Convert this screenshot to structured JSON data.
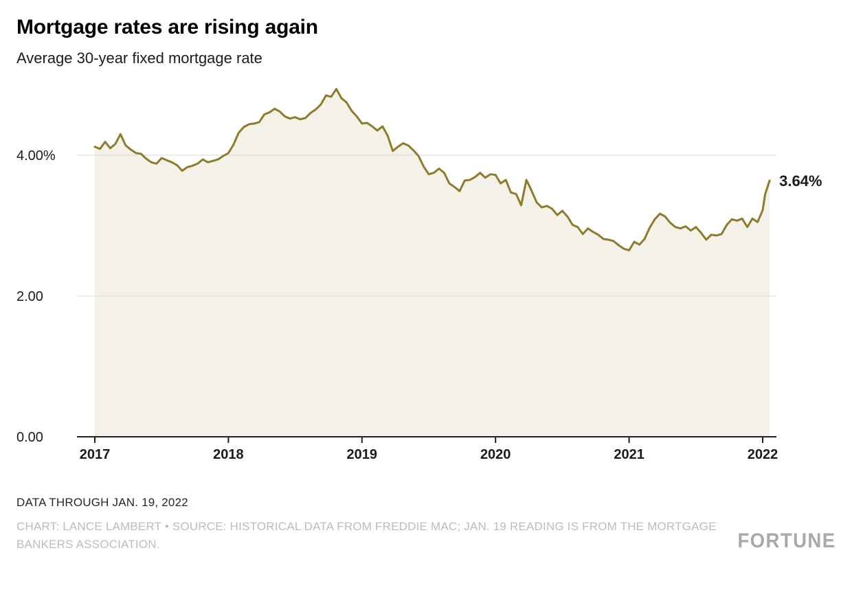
{
  "header": {
    "title": "Mortgage rates are rising again",
    "subtitle": "Average 30-year fixed mortgage rate"
  },
  "chart_data": {
    "type": "area",
    "title": "Mortgage rates are rising again",
    "subtitle": "Average 30-year fixed mortgage rate",
    "xlabel": "",
    "ylabel": "",
    "xlim": [
      2017,
      2022.1
    ],
    "ylim": [
      0,
      5.2
    ],
    "grid": "horizontal",
    "legend": "none",
    "line_color": "#8d7b2c",
    "fill_color": "#f4f1e9",
    "grid_color": "#d9d9d9",
    "axis_color": "#1f1f1f",
    "label_color": "#1a1a1a",
    "end_label": "3.64%",
    "y_ticks": [
      {
        "value": 4,
        "label": "4.00%"
      },
      {
        "value": 2,
        "label": "2.00"
      },
      {
        "value": 0,
        "label": "0.00"
      }
    ],
    "x_ticks": [
      {
        "value": 2017,
        "label": "2017"
      },
      {
        "value": 2018,
        "label": "2018"
      },
      {
        "value": 2019,
        "label": "2019"
      },
      {
        "value": 2020,
        "label": "2020"
      },
      {
        "value": 2021,
        "label": "2021"
      },
      {
        "value": 2022,
        "label": "2022"
      }
    ],
    "series": [
      {
        "name": "Average 30-year fixed mortgage rate (%)",
        "points": [
          [
            2017.0,
            4.12
          ],
          [
            2017.038,
            4.09
          ],
          [
            2017.077,
            4.19
          ],
          [
            2017.115,
            4.1
          ],
          [
            2017.154,
            4.16
          ],
          [
            2017.192,
            4.3
          ],
          [
            2017.231,
            4.14
          ],
          [
            2017.269,
            4.08
          ],
          [
            2017.308,
            4.03
          ],
          [
            2017.346,
            4.02
          ],
          [
            2017.385,
            3.95
          ],
          [
            2017.423,
            3.9
          ],
          [
            2017.462,
            3.88
          ],
          [
            2017.5,
            3.96
          ],
          [
            2017.538,
            3.93
          ],
          [
            2017.577,
            3.9
          ],
          [
            2017.615,
            3.86
          ],
          [
            2017.654,
            3.78
          ],
          [
            2017.692,
            3.83
          ],
          [
            2017.731,
            3.85
          ],
          [
            2017.769,
            3.88
          ],
          [
            2017.808,
            3.94
          ],
          [
            2017.846,
            3.9
          ],
          [
            2017.885,
            3.92
          ],
          [
            2017.923,
            3.94
          ],
          [
            2017.962,
            3.99
          ],
          [
            2018.0,
            4.03
          ],
          [
            2018.038,
            4.15
          ],
          [
            2018.077,
            4.32
          ],
          [
            2018.115,
            4.4
          ],
          [
            2018.154,
            4.44
          ],
          [
            2018.192,
            4.45
          ],
          [
            2018.231,
            4.47
          ],
          [
            2018.269,
            4.58
          ],
          [
            2018.308,
            4.61
          ],
          [
            2018.346,
            4.66
          ],
          [
            2018.385,
            4.62
          ],
          [
            2018.423,
            4.55
          ],
          [
            2018.462,
            4.52
          ],
          [
            2018.5,
            4.54
          ],
          [
            2018.538,
            4.51
          ],
          [
            2018.577,
            4.53
          ],
          [
            2018.615,
            4.6
          ],
          [
            2018.654,
            4.65
          ],
          [
            2018.692,
            4.72
          ],
          [
            2018.731,
            4.85
          ],
          [
            2018.769,
            4.83
          ],
          [
            2018.808,
            4.94
          ],
          [
            2018.846,
            4.81
          ],
          [
            2018.885,
            4.75
          ],
          [
            2018.923,
            4.63
          ],
          [
            2018.962,
            4.55
          ],
          [
            2019.0,
            4.45
          ],
          [
            2019.038,
            4.46
          ],
          [
            2019.077,
            4.41
          ],
          [
            2019.115,
            4.35
          ],
          [
            2019.154,
            4.41
          ],
          [
            2019.192,
            4.28
          ],
          [
            2019.231,
            4.06
          ],
          [
            2019.269,
            4.12
          ],
          [
            2019.308,
            4.17
          ],
          [
            2019.346,
            4.14
          ],
          [
            2019.385,
            4.07
          ],
          [
            2019.423,
            3.99
          ],
          [
            2019.462,
            3.84
          ],
          [
            2019.5,
            3.73
          ],
          [
            2019.538,
            3.75
          ],
          [
            2019.577,
            3.81
          ],
          [
            2019.615,
            3.75
          ],
          [
            2019.654,
            3.6
          ],
          [
            2019.692,
            3.55
          ],
          [
            2019.731,
            3.49
          ],
          [
            2019.769,
            3.64
          ],
          [
            2019.808,
            3.65
          ],
          [
            2019.846,
            3.69
          ],
          [
            2019.885,
            3.75
          ],
          [
            2019.923,
            3.68
          ],
          [
            2019.962,
            3.73
          ],
          [
            2020.0,
            3.72
          ],
          [
            2020.038,
            3.6
          ],
          [
            2020.077,
            3.65
          ],
          [
            2020.115,
            3.47
          ],
          [
            2020.154,
            3.45
          ],
          [
            2020.192,
            3.29
          ],
          [
            2020.231,
            3.65
          ],
          [
            2020.269,
            3.5
          ],
          [
            2020.308,
            3.33
          ],
          [
            2020.346,
            3.26
          ],
          [
            2020.385,
            3.28
          ],
          [
            2020.423,
            3.24
          ],
          [
            2020.462,
            3.15
          ],
          [
            2020.5,
            3.21
          ],
          [
            2020.538,
            3.13
          ],
          [
            2020.577,
            3.01
          ],
          [
            2020.615,
            2.98
          ],
          [
            2020.654,
            2.88
          ],
          [
            2020.692,
            2.96
          ],
          [
            2020.731,
            2.91
          ],
          [
            2020.769,
            2.87
          ],
          [
            2020.808,
            2.81
          ],
          [
            2020.846,
            2.8
          ],
          [
            2020.885,
            2.78
          ],
          [
            2020.923,
            2.72
          ],
          [
            2020.962,
            2.67
          ],
          [
            2021.0,
            2.65
          ],
          [
            2021.038,
            2.77
          ],
          [
            2021.077,
            2.73
          ],
          [
            2021.115,
            2.81
          ],
          [
            2021.154,
            2.97
          ],
          [
            2021.192,
            3.09
          ],
          [
            2021.231,
            3.17
          ],
          [
            2021.269,
            3.13
          ],
          [
            2021.308,
            3.04
          ],
          [
            2021.346,
            2.98
          ],
          [
            2021.385,
            2.96
          ],
          [
            2021.423,
            2.99
          ],
          [
            2021.462,
            2.93
          ],
          [
            2021.5,
            2.98
          ],
          [
            2021.538,
            2.9
          ],
          [
            2021.577,
            2.8
          ],
          [
            2021.615,
            2.87
          ],
          [
            2021.654,
            2.86
          ],
          [
            2021.692,
            2.88
          ],
          [
            2021.731,
            3.01
          ],
          [
            2021.769,
            3.09
          ],
          [
            2021.808,
            3.07
          ],
          [
            2021.846,
            3.1
          ],
          [
            2021.885,
            2.98
          ],
          [
            2021.923,
            3.1
          ],
          [
            2021.962,
            3.05
          ],
          [
            2022.0,
            3.22
          ],
          [
            2022.019,
            3.45
          ],
          [
            2022.038,
            3.56
          ],
          [
            2022.052,
            3.64
          ]
        ]
      }
    ]
  },
  "footer": {
    "note": "DATA THROUGH JAN. 19, 2022",
    "credit": "CHART: LANCE LAMBERT • SOURCE: HISTORICAL DATA FROM FREDDIE MAC; JAN. 19 READING IS FROM THE MORTGAGE BANKERS ASSOCIATION.",
    "brand": "FORTUNE"
  }
}
